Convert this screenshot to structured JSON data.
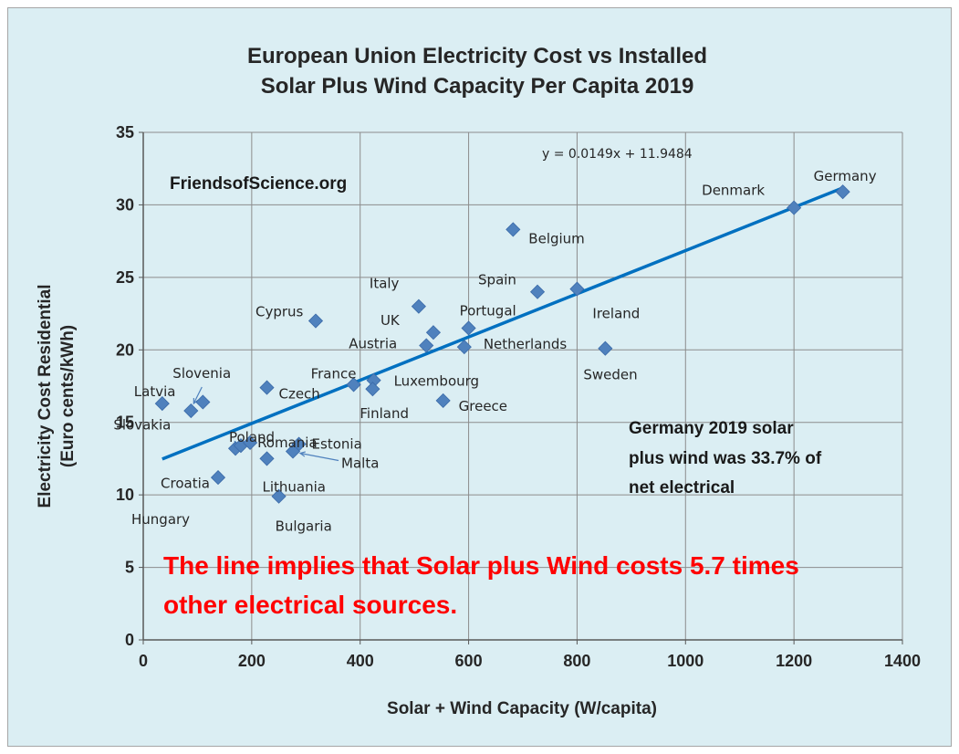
{
  "chart_data": {
    "type": "scatter",
    "title_lines": [
      "European Union Electricity Cost vs Installed",
      "Solar Plus Wind Capacity Per Capita 2019"
    ],
    "xlabel": "Solar + Wind Capacity (W/capita)",
    "ylabel_lines": [
      "Electricity Cost Residential",
      "(Euro cents/kWh)"
    ],
    "xlim": [
      0,
      1400
    ],
    "ylim": [
      0,
      35
    ],
    "xticks": [
      0,
      200,
      400,
      600,
      800,
      1000,
      1200,
      1400
    ],
    "yticks": [
      0,
      5,
      10,
      15,
      20,
      25,
      30,
      35
    ],
    "grid": true,
    "marker_color": "#4f81bd",
    "trend_color": "#0070c0",
    "points": [
      {
        "country": "Latvia",
        "x": 35,
        "y": 16.3
      },
      {
        "country": "Slovenia",
        "x": 88,
        "y": 15.8
      },
      {
        "country": "Slovakia",
        "x": 110,
        "y": 16.4
      },
      {
        "country": "Croatia",
        "x": 170,
        "y": 13.2
      },
      {
        "country": "Poland",
        "x": 180,
        "y": 13.4
      },
      {
        "country": "Romania",
        "x": 197,
        "y": 13.6
      },
      {
        "country": "Hungary",
        "x": 138,
        "y": 11.2
      },
      {
        "country": "Lithuania",
        "x": 228,
        "y": 12.5
      },
      {
        "country": "Czech",
        "x": 228,
        "y": 17.4
      },
      {
        "country": "Bulgaria",
        "x": 250,
        "y": 9.9
      },
      {
        "country": "Estonia",
        "x": 287,
        "y": 13.5
      },
      {
        "country": "Malta",
        "x": 276,
        "y": 13.0
      },
      {
        "country": "Cyprus",
        "x": 318,
        "y": 22.0
      },
      {
        "country": "France",
        "x": 388,
        "y": 17.6
      },
      {
        "country": "Luxembourg",
        "x": 425,
        "y": 17.9
      },
      {
        "country": "Finland",
        "x": 423,
        "y": 17.3
      },
      {
        "country": "Italy",
        "x": 508,
        "y": 23.0
      },
      {
        "country": "Austria",
        "x": 522,
        "y": 20.3
      },
      {
        "country": "UK",
        "x": 535,
        "y": 21.2
      },
      {
        "country": "Greece",
        "x": 553,
        "y": 16.5
      },
      {
        "country": "Netherlands",
        "x": 592,
        "y": 20.2
      },
      {
        "country": "Portugal",
        "x": 600,
        "y": 21.5
      },
      {
        "country": "Belgium",
        "x": 682,
        "y": 28.3
      },
      {
        "country": "Spain",
        "x": 727,
        "y": 24.0
      },
      {
        "country": "Ireland",
        "x": 800,
        "y": 24.2
      },
      {
        "country": "Sweden",
        "x": 852,
        "y": 20.1
      },
      {
        "country": "Denmark",
        "x": 1200,
        "y": 29.8
      },
      {
        "country": "Germany",
        "x": 1290,
        "y": 30.9
      }
    ],
    "trendline": {
      "slope": 0.0149,
      "intercept": 11.9484,
      "x_range": [
        35,
        1290
      ],
      "equation_label": "y = 0.0149x + 11.9484"
    },
    "annotations": {
      "source": "FriendsofScience.org",
      "germany_note_lines": [
        "Germany 2019 solar",
        "plus wind was 33.7% of",
        "net electrical"
      ],
      "red_note_lines": [
        "The line implies that Solar plus Wind costs 5.7 times",
        "other electrical sources."
      ]
    }
  }
}
